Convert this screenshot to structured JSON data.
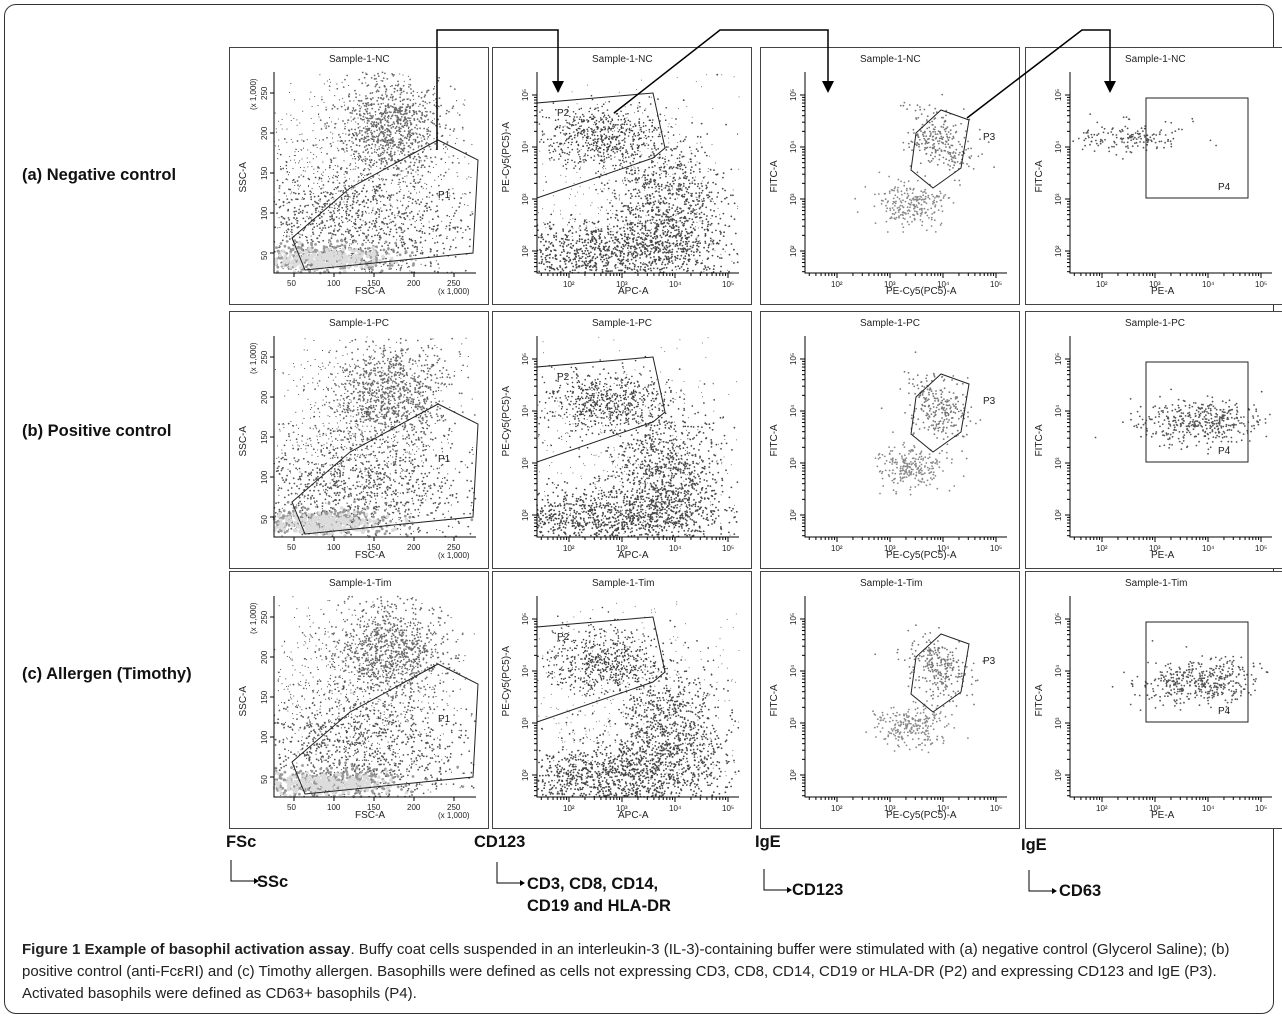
{
  "row_labels": [
    "(a) Negative control",
    "(b) Positive control",
    "(c) Allergen (Timothy)"
  ],
  "sample_titles": [
    "Sample-1-NC",
    "Sample-1-PC",
    "Sample-1-Tim"
  ],
  "panel_axes": {
    "fsc": {
      "x": "FSC-A",
      "y": "SSC-A",
      "x_scale": "(x 1,000)",
      "y_scale": "(x 1,000)",
      "ticks": [
        "50",
        "100",
        "150",
        "200",
        "250"
      ]
    },
    "cd3": {
      "x": "APC-A",
      "y": "PE-Cy5(PC5)-A"
    },
    "ige": {
      "x": "PE-Cy5(PC5)-A",
      "y": "FITC-A"
    },
    "cd63": {
      "x": "PE-A",
      "y": "FITC-A"
    },
    "log_ticks": [
      "10²",
      "10³",
      "10⁴",
      "10⁵"
    ]
  },
  "gates": {
    "p1": "P1",
    "p2": "P2",
    "p3": "P3",
    "p4": "P4"
  },
  "column_axis_labels": [
    {
      "top": "FSc",
      "bottom": "SSc"
    },
    {
      "top": "CD123",
      "bottom": "CD3, CD8, CD14,",
      "bottom2": "CD19 and HLA-DR"
    },
    {
      "top": "IgE",
      "bottom": "CD123"
    },
    {
      "top": "IgE",
      "bottom": "CD63"
    }
  ],
  "caption": {
    "title": "Figure 1 Example of basophil activation assay",
    "body": ". Buffy coat cells suspended in an interleukin-3 (IL-3)-containing buffer were stimulated with (a) negative control (Glycerol Saline); (b) positive control (anti-FcεRI) and (c) Timothy allergen. Basophills were defined as cells not expressing CD3, CD8, CD14, CD19 or HLA-DR (P2) and expressing CD123 and IgE (P3). Activated basophils were defined as CD63+ basophils (P4)."
  }
}
